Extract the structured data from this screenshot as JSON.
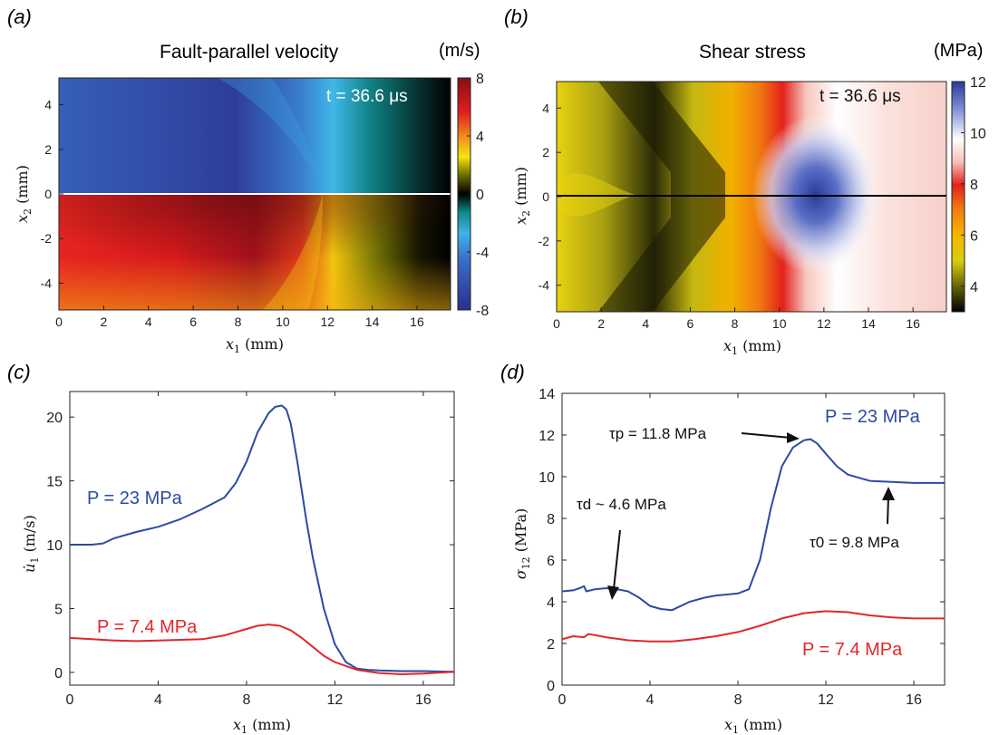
{
  "colors": {
    "blue": "#2b4aa3",
    "red": "#e3262a",
    "axis": "#222222",
    "fault_line_a": "#ffffff",
    "fault_line_b": "#000000"
  },
  "chart_data": [
    {
      "panel": "(a)",
      "type": "heatmap",
      "title": "Fault-parallel velocity",
      "colorbar_unit": "(m/s)",
      "time_label": "t = 36.6 μs",
      "xlabel": "x1 (mm)",
      "ylabel": "x2 (mm)",
      "xlim": [
        0,
        17.5
      ],
      "ylim": [
        -5.2,
        5.2
      ],
      "xticks": [
        "0",
        "2",
        "4",
        "6",
        "8",
        "10",
        "12",
        "14",
        "16"
      ],
      "yticks": [
        "-4",
        "-2",
        "0",
        "2",
        "4"
      ],
      "colorbar_range": [
        -8,
        8
      ],
      "colorbar_ticks": [
        "8",
        "4",
        "0",
        "-4",
        "-8"
      ],
      "colormap": [
        "#2a2f8c",
        "#3a6fc9",
        "#3fb2e8",
        "#0e8a8a",
        "#000000",
        "#6b6b00",
        "#f2e60e",
        "#f08a1a",
        "#e0201e",
        "#8b0c12"
      ]
    },
    {
      "panel": "(b)",
      "type": "heatmap",
      "title": "Shear stress",
      "colorbar_unit": "(MPa)",
      "time_label": "t = 36.6 μs",
      "xlabel": "x1 (mm)",
      "ylabel": "x2 (mm)",
      "xlim": [
        0,
        17.5
      ],
      "ylim": [
        -5.2,
        5.2
      ],
      "xticks": [
        "0",
        "2",
        "4",
        "6",
        "8",
        "10",
        "12",
        "14",
        "16"
      ],
      "yticks": [
        "-4",
        "-2",
        "0",
        "2",
        "4"
      ],
      "colorbar_range": [
        3,
        12
      ],
      "colorbar_ticks": [
        "12",
        "10",
        "8",
        "6",
        "4"
      ],
      "colormap": [
        "#000000",
        "#5a5a0a",
        "#d8cc10",
        "#f5b800",
        "#f07a10",
        "#e3201c",
        "#f6c0b8",
        "#ffffff",
        "#7f8fd6",
        "#2b3a9a"
      ]
    },
    {
      "panel": "(c)",
      "type": "line",
      "xlabel": "x1 (mm)",
      "ylabel": "u̇1 (m/s)",
      "xlim": [
        0,
        17.4
      ],
      "ylim": [
        -1,
        22
      ],
      "xticks": [
        0,
        4,
        8,
        12,
        16
      ],
      "yticks": [
        0,
        5,
        10,
        15,
        20
      ],
      "grid": false,
      "series": [
        {
          "name": "P = 23 MPa",
          "color": "#2b4aa3",
          "x": [
            0,
            1,
            1.5,
            2,
            3,
            4,
            5,
            6,
            7,
            7.5,
            8,
            8.5,
            9,
            9.3,
            9.6,
            9.8,
            10,
            10.3,
            10.7,
            11,
            11.5,
            12,
            12.5,
            13,
            13.5,
            14,
            15,
            16,
            17.4
          ],
          "y": [
            10,
            10,
            10.1,
            10.5,
            11,
            11.4,
            12,
            12.8,
            13.7,
            14.8,
            16.5,
            18.8,
            20.3,
            20.8,
            20.9,
            20.6,
            19.5,
            16.5,
            12,
            9,
            5,
            2.2,
            0.8,
            0.3,
            0.2,
            0.15,
            0.1,
            0.1,
            0.05
          ]
        },
        {
          "name": "P = 7.4 MPa",
          "color": "#e3262a",
          "x": [
            0,
            1,
            2,
            3,
            4,
            5,
            6,
            7,
            8,
            8.5,
            9,
            9.5,
            10,
            10.5,
            11,
            11.5,
            12,
            13,
            14,
            15,
            16,
            17.4
          ],
          "y": [
            2.7,
            2.6,
            2.5,
            2.45,
            2.5,
            2.55,
            2.6,
            2.9,
            3.4,
            3.65,
            3.75,
            3.65,
            3.3,
            2.7,
            2.0,
            1.3,
            0.8,
            0.2,
            -0.05,
            -0.15,
            -0.1,
            0.05
          ]
        }
      ],
      "annotations": [
        {
          "text": "P = 23 MPa",
          "color": "#2b4aa3"
        },
        {
          "text": "P = 7.4 MPa",
          "color": "#e3262a"
        }
      ]
    },
    {
      "panel": "(d)",
      "type": "line",
      "xlabel": "x1 (mm)",
      "ylabel": "σ12 (MPa)",
      "xlim": [
        0,
        17.4
      ],
      "ylim": [
        0,
        14
      ],
      "xticks": [
        0,
        4,
        8,
        12,
        16
      ],
      "yticks": [
        0,
        2,
        4,
        6,
        8,
        10,
        12,
        14
      ],
      "grid": false,
      "series": [
        {
          "name": "P = 23 MPa",
          "color": "#2b4aa3",
          "x": [
            0,
            0.5,
            0.8,
            1,
            1.1,
            1.5,
            2,
            2.5,
            3,
            3.5,
            4,
            4.5,
            5,
            5.3,
            5.8,
            6.5,
            7,
            7.5,
            8,
            8.5,
            9,
            9.5,
            10,
            10.5,
            11,
            11.3,
            11.6,
            12,
            12.5,
            13,
            14,
            15,
            16,
            17.4
          ],
          "y": [
            4.5,
            4.55,
            4.65,
            4.75,
            4.5,
            4.6,
            4.65,
            4.6,
            4.5,
            4.2,
            3.8,
            3.65,
            3.6,
            3.75,
            4.0,
            4.2,
            4.3,
            4.35,
            4.4,
            4.6,
            6.0,
            8.5,
            10.5,
            11.4,
            11.75,
            11.8,
            11.6,
            11.1,
            10.5,
            10.1,
            9.8,
            9.75,
            9.7,
            9.7
          ]
        },
        {
          "name": "P = 7.4 MPa",
          "color": "#e3262a",
          "x": [
            0,
            0.5,
            1,
            1.2,
            1.5,
            2,
            3,
            4,
            5,
            6,
            7,
            8,
            9,
            10,
            11,
            12,
            13,
            14,
            15,
            16,
            17.4
          ],
          "y": [
            2.2,
            2.35,
            2.3,
            2.45,
            2.4,
            2.3,
            2.15,
            2.1,
            2.1,
            2.2,
            2.35,
            2.55,
            2.85,
            3.2,
            3.45,
            3.55,
            3.5,
            3.35,
            3.25,
            3.2,
            3.2
          ]
        }
      ],
      "annotations": [
        {
          "text": "τp = 11.8 MPa"
        },
        {
          "text": "τd ~ 4.6 MPa"
        },
        {
          "text": "τ0 = 9.8 MPa"
        },
        {
          "text": "P = 23 MPa",
          "color": "#2b4aa3"
        },
        {
          "text": "P = 7.4 MPa",
          "color": "#e3262a"
        }
      ]
    }
  ]
}
